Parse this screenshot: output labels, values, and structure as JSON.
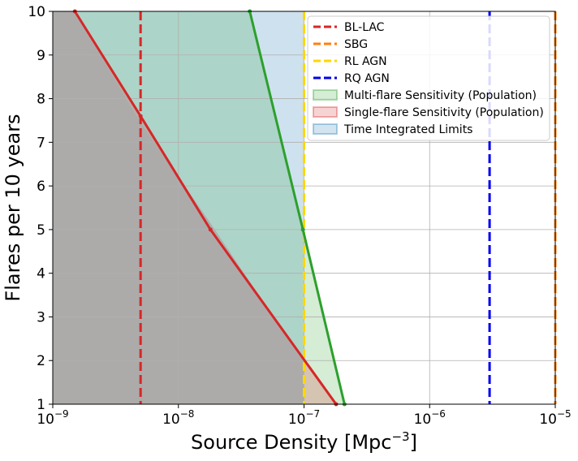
{
  "chart_data": {
    "type": "line",
    "xlabel": "Source Density [Mpc",
    "xlabel_sup": "−3",
    "xlabel_end": "]",
    "ylabel": "Flares per 10 years",
    "x_scale": "log",
    "xlim": [
      1e-09,
      1e-05
    ],
    "ylim": [
      1,
      10
    ],
    "grid": true,
    "legend_placement": "top-right",
    "x_ticks": [
      {
        "value": 1e-09,
        "base": "10",
        "exp": "−9"
      },
      {
        "value": 1e-08,
        "base": "10",
        "exp": "−8"
      },
      {
        "value": 1e-07,
        "base": "10",
        "exp": "−7"
      },
      {
        "value": 1e-06,
        "base": "10",
        "exp": "−6"
      },
      {
        "value": 1e-05,
        "base": "10",
        "exp": "−5"
      }
    ],
    "y_ticks": [
      {
        "value": 1,
        "label": "1"
      },
      {
        "value": 2,
        "label": "2"
      },
      {
        "value": 3,
        "label": "3"
      },
      {
        "value": 4,
        "label": "4"
      },
      {
        "value": 5,
        "label": "5"
      },
      {
        "value": 6,
        "label": "6"
      },
      {
        "value": 7,
        "label": "7"
      },
      {
        "value": 8,
        "label": "8"
      },
      {
        "value": 9,
        "label": "9"
      },
      {
        "value": 10,
        "label": "10"
      }
    ],
    "vlines": [
      {
        "name": "BL-LAC",
        "x": 5e-09,
        "color": "#d62728"
      },
      {
        "name": "SBG",
        "x": 1e-05,
        "color": "#ff7f0e"
      },
      {
        "name": "RL AGN",
        "x": 1e-07,
        "color": "#ffd700"
      },
      {
        "name": "RQ AGN",
        "x": 3e-06,
        "color": "#0000ee"
      }
    ],
    "areas": [
      {
        "name": "Multi-flare Sensitivity (Population)",
        "color": "#2ca02c",
        "line": [
          [
            3.7e-08,
            10
          ],
          [
            9.8e-08,
            5
          ],
          [
            2.1e-07,
            1
          ]
        ]
      },
      {
        "name": "Single-flare Sensitivity (Population)",
        "color": "#d62728",
        "line": [
          [
            1.5e-09,
            10
          ],
          [
            5e-09,
            7.6
          ],
          [
            1.8e-08,
            5
          ],
          [
            1.8e-07,
            1
          ]
        ]
      },
      {
        "name": "Time Integrated Limits",
        "color": "#1f77b4",
        "line": [
          [
            1e-07,
            10
          ],
          [
            1e-07,
            1
          ]
        ]
      }
    ],
    "gray_boundary": [
      [
        1.5e-09,
        10
      ],
      [
        5e-09,
        7.45
      ],
      [
        1.8e-08,
        5.15
      ],
      [
        1e-07,
        1.95
      ],
      [
        1e-07,
        1
      ]
    ]
  }
}
